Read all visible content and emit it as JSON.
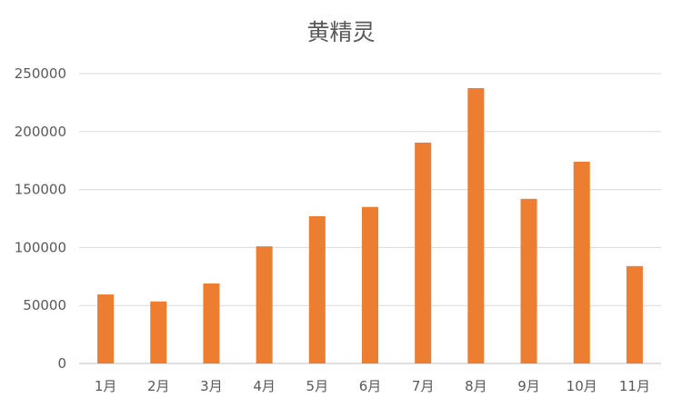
{
  "chart_data": {
    "type": "bar",
    "title": "黄精灵",
    "xlabel": "",
    "ylabel": "",
    "categories": [
      "1月",
      "2月",
      "3月",
      "4月",
      "5月",
      "6月",
      "7月",
      "8月",
      "9月",
      "10月",
      "11月"
    ],
    "series": [
      {
        "values": [
          59500,
          53500,
          69000,
          101000,
          127000,
          135000,
          190500,
          237500,
          142000,
          174000,
          84000
        ]
      }
    ],
    "ylim": [
      0,
      250000
    ],
    "yticks": [
      "0",
      "50000",
      "100000",
      "150000",
      "200000",
      "250000"
    ],
    "grid": true,
    "legend": "none",
    "bar_color": "#ed7d31"
  }
}
